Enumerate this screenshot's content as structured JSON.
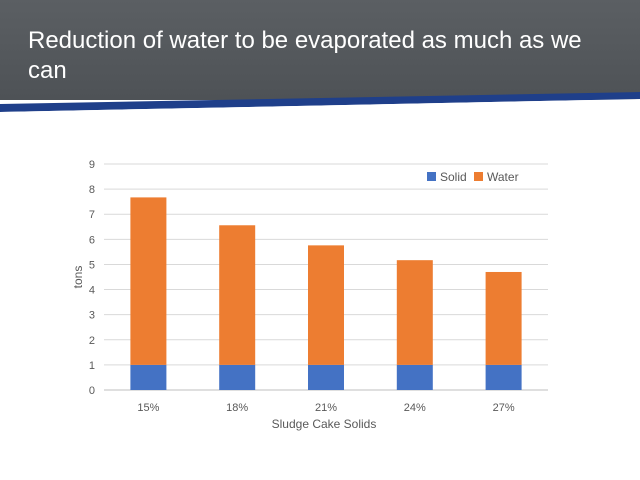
{
  "slide": {
    "title": "Reduction of water to be evaporated as much as we can"
  },
  "colors": {
    "header_bg": "#55595d",
    "accent_blue": "#1f3f8a",
    "solid": "#4472c4",
    "water": "#ed7d31",
    "grid": "#d9d9d9",
    "axis_text": "#595959"
  },
  "chart_data": {
    "type": "bar",
    "stacked": true,
    "categories": [
      "15%",
      "18%",
      "21%",
      "24%",
      "27%"
    ],
    "series": [
      {
        "name": "Solid",
        "values": [
          1,
          1,
          1,
          1,
          1
        ]
      },
      {
        "name": "Water",
        "values": [
          6.67,
          5.56,
          4.76,
          4.17,
          3.7
        ]
      }
    ],
    "title": "",
    "xlabel": "Sludge Cake Solids",
    "ylabel": "tons",
    "ylim": [
      0,
      9
    ],
    "yticks": [
      0,
      1,
      2,
      3,
      4,
      5,
      6,
      7,
      8,
      9
    ],
    "grid": true,
    "legend": "top-right"
  }
}
